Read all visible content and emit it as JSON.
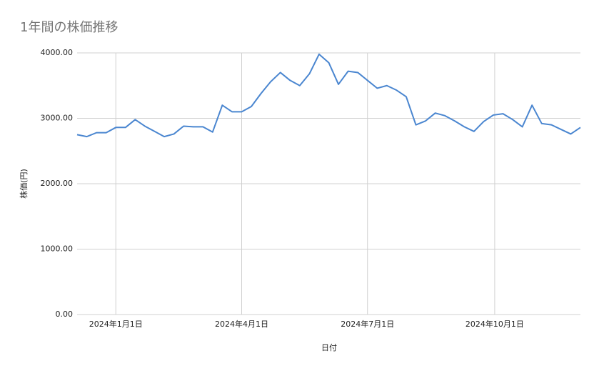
{
  "chart_data": {
    "type": "line",
    "title": "1年間の株価推移",
    "x_label": "日付",
    "y_label": "株価(円)",
    "x": [
      "2023-12-04",
      "2023-12-11",
      "2023-12-18",
      "2023-12-25",
      "2024-01-01",
      "2024-01-08",
      "2024-01-15",
      "2024-01-22",
      "2024-01-29",
      "2024-02-05",
      "2024-02-12",
      "2024-02-19",
      "2024-02-26",
      "2024-03-04",
      "2024-03-11",
      "2024-03-18",
      "2024-03-25",
      "2024-04-01",
      "2024-04-08",
      "2024-04-15",
      "2024-04-22",
      "2024-04-29",
      "2024-05-06",
      "2024-05-13",
      "2024-05-20",
      "2024-05-27",
      "2024-06-03",
      "2024-06-10",
      "2024-06-17",
      "2024-06-24",
      "2024-07-01",
      "2024-07-08",
      "2024-07-15",
      "2024-07-22",
      "2024-07-29",
      "2024-08-05",
      "2024-08-12",
      "2024-08-19",
      "2024-08-26",
      "2024-09-02",
      "2024-09-09",
      "2024-09-16",
      "2024-09-23",
      "2024-09-30",
      "2024-10-07",
      "2024-10-14",
      "2024-10-21",
      "2024-10-28",
      "2024-11-04",
      "2024-11-11",
      "2024-11-18",
      "2024-11-25",
      "2024-12-02"
    ],
    "series": [
      {
        "name": "株価",
        "color": "#4a86d0",
        "values": [
          2750,
          2720,
          2780,
          2780,
          2860,
          2860,
          2980,
          2880,
          2800,
          2720,
          2760,
          2880,
          2870,
          2870,
          2790,
          3200,
          3100,
          3100,
          3180,
          3380,
          3560,
          3700,
          3580,
          3500,
          3680,
          3980,
          3850,
          3520,
          3720,
          3700,
          3580,
          3460,
          3500,
          3430,
          3330,
          2900,
          2960,
          3080,
          3040,
          2960,
          2870,
          2800,
          2950,
          3050,
          3070,
          2980,
          2870,
          3200,
          2920,
          2900,
          2830,
          2760,
          2860
        ]
      }
    ],
    "xlim": [
      "2023-12-04",
      "2024-12-02"
    ],
    "xticks": [
      {
        "value": "2024-01-01",
        "label": "2024年1月1日"
      },
      {
        "value": "2024-04-01",
        "label": "2024年4月1日"
      },
      {
        "value": "2024-07-01",
        "label": "2024年7月1日"
      },
      {
        "value": "2024-10-01",
        "label": "2024年10月1日"
      }
    ],
    "ylim": [
      0,
      4000
    ],
    "yticks": [
      {
        "value": 0,
        "label": "0.00"
      },
      {
        "value": 1000,
        "label": "1000.00"
      },
      {
        "value": 2000,
        "label": "2000.00"
      },
      {
        "value": 3000,
        "label": "3000.00"
      },
      {
        "value": 4000,
        "label": "4000.00"
      }
    ],
    "grid": true
  }
}
